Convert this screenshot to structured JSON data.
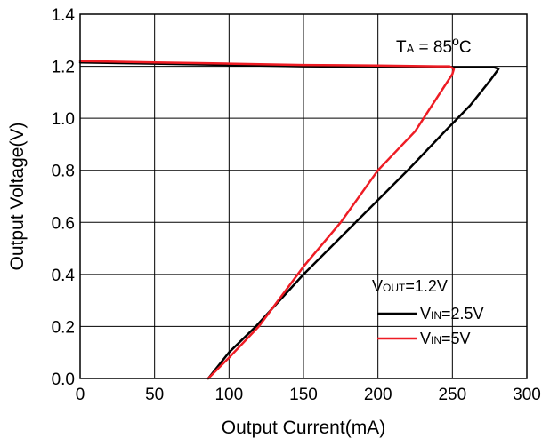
{
  "chart_data": {
    "type": "line",
    "xlabel": "Output Current(mA)",
    "ylabel": "Output Voltage(V)",
    "xlim": [
      0,
      300
    ],
    "ylim": [
      0,
      1.4
    ],
    "x_ticks": [
      "0",
      "50",
      "100",
      "150",
      "200",
      "250",
      "300"
    ],
    "y_ticks": [
      "0.0",
      "0.2",
      "0.4",
      "0.6",
      "0.8",
      "1.0",
      "1.2",
      "1.4"
    ],
    "grid": true,
    "annotation": {
      "main": "T",
      "sub": "A",
      "mid": " = 85",
      "sup": "o",
      "end": "C"
    },
    "legend": {
      "placement": "bottom-right",
      "header": {
        "main": "V",
        "sub": "OUT",
        "rest": "=1.2V"
      },
      "entries": [
        {
          "main": "V",
          "sub": "IN",
          "rest": "=2.5V",
          "color": "#000000"
        },
        {
          "main": "V",
          "sub": "IN",
          "rest": "=5V",
          "color": "#ee1c24"
        }
      ]
    },
    "series": [
      {
        "color": "#000000",
        "x": [
          0,
          50,
          100,
          150,
          200,
          250,
          270,
          278,
          281,
          276,
          262,
          245,
          220,
          185,
          150,
          118,
          100,
          86
        ],
        "y": [
          1.215,
          1.21,
          1.205,
          1.2,
          1.198,
          1.196,
          1.196,
          1.196,
          1.19,
          1.15,
          1.05,
          0.95,
          0.8,
          0.6,
          0.4,
          0.2,
          0.1,
          0.0
        ]
      },
      {
        "color": "#ee1c24",
        "x": [
          0,
          50,
          100,
          150,
          200,
          240,
          248,
          251,
          250,
          242,
          225,
          200,
          175,
          150,
          120,
          100,
          86
        ],
        "y": [
          1.22,
          1.215,
          1.21,
          1.205,
          1.203,
          1.2,
          1.2,
          1.19,
          1.17,
          1.1,
          0.95,
          0.8,
          0.6,
          0.43,
          0.2,
          0.08,
          0.0
        ]
      }
    ]
  }
}
